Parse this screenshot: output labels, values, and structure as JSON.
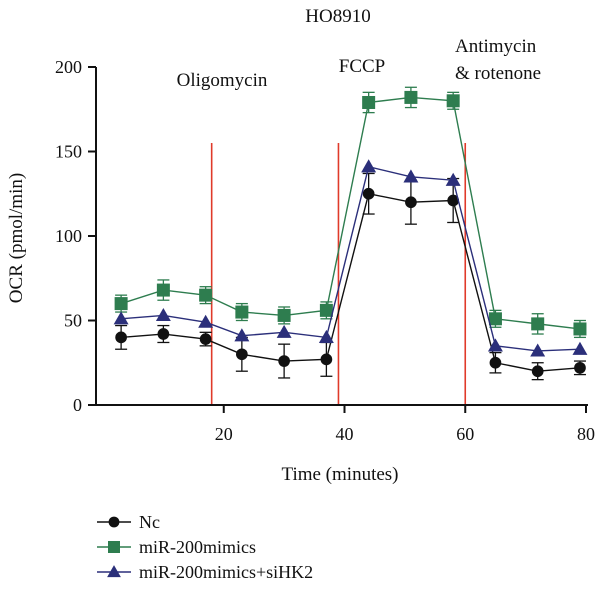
{
  "chart_data": {
    "type": "line",
    "title": "HO8910",
    "xlabel": "Time (minutes)",
    "ylabel": "OCR (pmol/min)",
    "xlim": [
      0,
      80
    ],
    "ylim": [
      0,
      200
    ],
    "xticks": [
      20,
      40,
      60,
      80
    ],
    "yticks": [
      0,
      50,
      100,
      150,
      200
    ],
    "injections": [
      {
        "x": 18,
        "lines": [
          "Oligomycin"
        ]
      },
      {
        "x": 39,
        "lines": [
          "FCCP"
        ]
      },
      {
        "x": 60,
        "lines": [
          "Antimycin",
          "& rotenone"
        ]
      }
    ],
    "series": [
      {
        "name": "Nc",
        "color": "#111111",
        "marker": "circle",
        "x": [
          3,
          10,
          17,
          23,
          30,
          37,
          44,
          51,
          58,
          65,
          72,
          79
        ],
        "y": [
          40,
          42,
          39,
          30,
          26,
          27,
          125,
          120,
          121,
          25,
          20,
          22
        ],
        "err": [
          7,
          5,
          4,
          10,
          10,
          10,
          12,
          13,
          13,
          6,
          5,
          4
        ]
      },
      {
        "name": "miR-200mimics",
        "color": "#2e7d4f",
        "marker": "square",
        "x": [
          3,
          10,
          17,
          23,
          30,
          37,
          44,
          51,
          58,
          65,
          72,
          79
        ],
        "y": [
          60,
          68,
          65,
          55,
          53,
          56,
          179,
          182,
          180,
          51,
          48,
          45
        ],
        "err": [
          5,
          6,
          5,
          5,
          5,
          5,
          6,
          6,
          5,
          5,
          6,
          5
        ]
      },
      {
        "name": "miR-200mimics+siHK2",
        "color": "#2b2f7a",
        "marker": "triangle",
        "x": [
          3,
          10,
          17,
          23,
          30,
          37,
          44,
          51,
          58,
          65,
          72,
          79
        ],
        "y": [
          51,
          53,
          49,
          41,
          43,
          40,
          141,
          135,
          133,
          35,
          32,
          33
        ],
        "err": [
          0,
          0,
          0,
          0,
          0,
          0,
          0,
          0,
          0,
          0,
          0,
          0
        ]
      }
    ],
    "grid": false,
    "legend_position": "bottom-left"
  },
  "colors": {
    "axis": "#111111",
    "injection_line": "#e03a2a"
  }
}
